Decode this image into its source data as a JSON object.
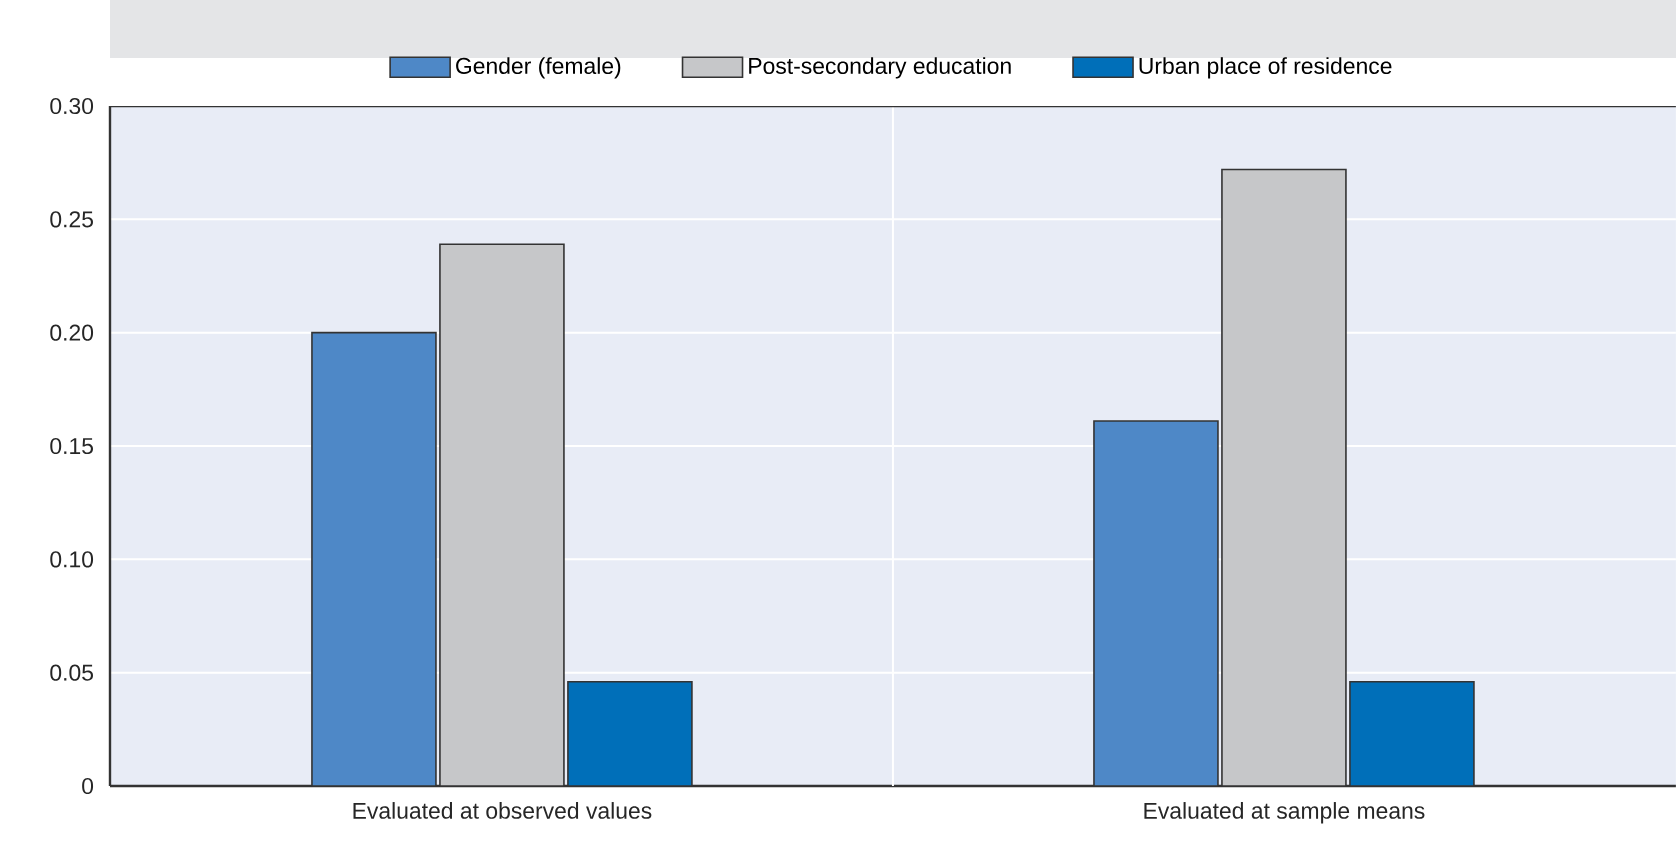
{
  "chart_data": {
    "type": "bar",
    "categories": [
      "Evaluated at observed values",
      "Evaluated at sample means"
    ],
    "series": [
      {
        "name": "Gender (female)",
        "color": "#4e88c7",
        "values": [
          0.2,
          0.161
        ]
      },
      {
        "name": "Post-secondary education",
        "color": "#c6c7c9",
        "values": [
          0.239,
          0.272
        ]
      },
      {
        "name": "Urban place of residence",
        "color": "#006fb9",
        "values": [
          0.046,
          0.046
        ]
      }
    ],
    "ylim": [
      0,
      0.3
    ],
    "yticks": [
      {
        "value": 0,
        "label": "0"
      },
      {
        "value": 0.05,
        "label": "0.05"
      },
      {
        "value": 0.1,
        "label": "0.10"
      },
      {
        "value": 0.15,
        "label": "0.15"
      },
      {
        "value": 0.2,
        "label": "0.20"
      },
      {
        "value": 0.25,
        "label": "0.25"
      },
      {
        "value": 0.3,
        "label": "0.30"
      }
    ],
    "grid": "y",
    "legend": "top"
  }
}
